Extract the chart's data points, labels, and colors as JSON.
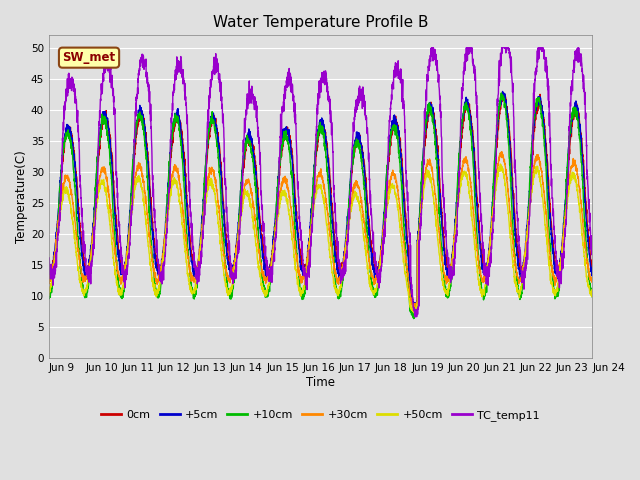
{
  "title": "Water Temperature Profile B",
  "xlabel": "Time",
  "ylabel": "Temperature(C)",
  "ylim": [
    0,
    52
  ],
  "yticks": [
    0,
    5,
    10,
    15,
    20,
    25,
    30,
    35,
    40,
    45,
    50
  ],
  "x_start_day": 9,
  "x_end_day": 24,
  "x_tick_days": [
    9,
    10,
    11,
    12,
    13,
    14,
    15,
    16,
    17,
    18,
    19,
    20,
    21,
    22,
    23,
    24
  ],
  "x_tick_labels": [
    "Jun 9",
    "Jun 10",
    "Jun 11",
    "Jun 12",
    "Jun 13",
    "Jun 14",
    "Jun 15",
    "Jun 16",
    "Jun 17",
    "Jun 18",
    "Jun 19",
    "Jun 20",
    "Jun 21",
    "Jun 22",
    "Jun 23",
    "Jun 24"
  ],
  "annotation_text": "SW_met",
  "annotation_color": "#8B0000",
  "annotation_bg": "#FFFFAA",
  "annotation_border": "#8B4513",
  "series": [
    {
      "label": "0cm",
      "color": "#CC0000",
      "lw": 1.0
    },
    {
      "label": "+5cm",
      "color": "#0000CC",
      "lw": 1.0
    },
    {
      "label": "+10cm",
      "color": "#00BB00",
      "lw": 1.0
    },
    {
      "label": "+30cm",
      "color": "#FF8800",
      "lw": 1.0
    },
    {
      "label": "+50cm",
      "color": "#DDDD00",
      "lw": 1.0
    },
    {
      "label": "TC_temp11",
      "color": "#9900CC",
      "lw": 1.0
    }
  ],
  "bg_color": "#E0E0E0",
  "plot_bg_color": "#E0E0E0",
  "grid_color": "#FFFFFF",
  "figsize": [
    6.4,
    4.8
  ],
  "dpi": 100
}
